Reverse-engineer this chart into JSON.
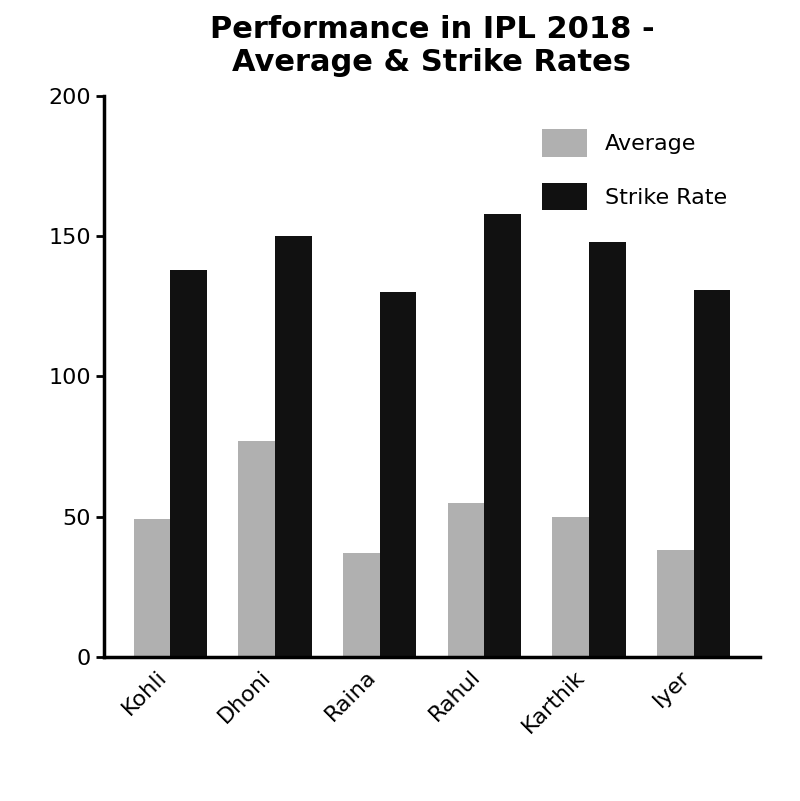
{
  "title": "Performance in IPL 2018 -\nAverage & Strike Rates",
  "categories": [
    "Kohli",
    "Dhoni",
    "Raina",
    "Rahul",
    "Karthik",
    "Iyer"
  ],
  "averages": [
    49,
    77,
    37,
    55,
    50,
    38
  ],
  "strike_rates": [
    138,
    150,
    130,
    158,
    148,
    131
  ],
  "avg_color": "#b0b0b0",
  "sr_color": "#111111",
  "ylim": [
    0,
    200
  ],
  "yticks": [
    0,
    50,
    100,
    150,
    200
  ],
  "bar_width": 0.35,
  "legend_labels": [
    "Average",
    "Strike Rate"
  ],
  "title_fontsize": 22,
  "tick_fontsize": 16,
  "legend_fontsize": 16,
  "background_color": "#ffffff"
}
